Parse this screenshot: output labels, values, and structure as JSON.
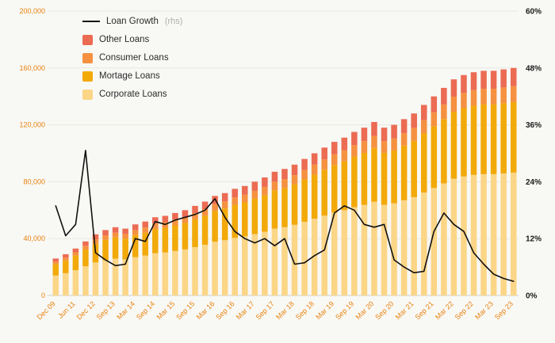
{
  "chart_data": {
    "type": "bar",
    "subtype": "stacked-bars-with-line-overlay",
    "title": "",
    "background": "#f8f8f5",
    "grid": true,
    "categories": [
      "Dec 09",
      "",
      "Jun 11",
      "",
      "Dec 12",
      "",
      "Sep 13",
      "",
      "Mar 14",
      "",
      "Sep 14",
      "",
      "Mar 15",
      "",
      "Sep 15",
      "",
      "Mar 16",
      "",
      "Sep 16",
      "",
      "Mar 17",
      "",
      "Sep 17",
      "",
      "Mar 18",
      "",
      "Sep 18",
      "",
      "Mar 19",
      "",
      "Sep 19",
      "",
      "Mar 20",
      "",
      "Sep 20",
      "",
      "Mar 21",
      "",
      "Sep 21",
      "",
      "Mar 22",
      "",
      "Sep 22",
      "",
      "Mar 23",
      "",
      "Sep 23"
    ],
    "series": [
      {
        "name": "Corporate Loans",
        "color": "#fbd687",
        "values": [
          14040,
          15660,
          17820,
          20520,
          23220,
          24840,
          25920,
          25380,
          27000,
          28080,
          29700,
          30240,
          31320,
          32400,
          34020,
          35640,
          37800,
          38880,
          40500,
          41580,
          43200,
          44820,
          46980,
          48060,
          49680,
          51840,
          54000,
          56160,
          58320,
          59940,
          62100,
          63720,
          65880,
          63720,
          64800,
          66960,
          69120,
          72360,
          75600,
          78840,
          82080,
          83700,
          84780,
          85320,
          85320,
          85860,
          86400
        ]
      },
      {
        "name": "Mortage Loans",
        "color": "#f2a90a",
        "values": [
          8060,
          8990,
          10230,
          11780,
          13330,
          14260,
          14880,
          14570,
          15500,
          16120,
          17050,
          17360,
          17980,
          18600,
          19530,
          20460,
          21700,
          22320,
          23250,
          23870,
          24800,
          25730,
          26970,
          27590,
          28520,
          29760,
          31000,
          32240,
          33480,
          34410,
          35650,
          36580,
          37820,
          36580,
          37200,
          38440,
          39680,
          41540,
          43400,
          45260,
          47120,
          48050,
          48670,
          48980,
          48980,
          49290,
          49600
        ]
      },
      {
        "name": "Consumer Loans",
        "color": "#f59140",
        "values": [
          1820,
          2030,
          2310,
          2660,
          3010,
          3220,
          3360,
          3290,
          3500,
          3640,
          3850,
          3920,
          4060,
          4200,
          4410,
          4620,
          4900,
          5040,
          5250,
          5390,
          5600,
          5810,
          6090,
          6230,
          6440,
          6720,
          7000,
          7280,
          7560,
          7770,
          8050,
          8260,
          8540,
          8260,
          8400,
          8680,
          8960,
          9380,
          9800,
          10220,
          10640,
          10850,
          10990,
          11060,
          11060,
          11130,
          11200
        ]
      },
      {
        "name": "Other Loans",
        "color": "#ec6b53",
        "values": [
          2080,
          2320,
          2640,
          3040,
          3440,
          3680,
          3840,
          3760,
          4000,
          4160,
          4400,
          4480,
          4640,
          4800,
          5040,
          5280,
          5600,
          5760,
          6000,
          6160,
          6400,
          6640,
          6960,
          7120,
          7360,
          7680,
          8000,
          8320,
          8640,
          8880,
          9200,
          9440,
          9760,
          9440,
          9600,
          9920,
          10240,
          10720,
          11200,
          11680,
          12160,
          12400,
          12560,
          12640,
          12640,
          12720,
          12800
        ]
      }
    ],
    "line_series": {
      "name": "Loan Growth",
      "suffix": "(rhs)",
      "axis": "right",
      "color": "#111111",
      "values": [
        18.9,
        12.6,
        15.0,
        30.6,
        9.0,
        7.5,
        6.3,
        6.6,
        12.0,
        11.4,
        15.6,
        15.0,
        15.9,
        16.5,
        17.1,
        18.0,
        20.4,
        16.5,
        13.5,
        12.0,
        11.1,
        12.0,
        10.5,
        12.0,
        6.6,
        6.9,
        8.4,
        9.6,
        17.4,
        18.9,
        18.0,
        15.0,
        14.4,
        15.0,
        7.5,
        6.0,
        4.8,
        5.1,
        13.5,
        17.4,
        15.0,
        13.5,
        9.0,
        6.6,
        4.5,
        3.6,
        3.0
      ]
    },
    "left_axis": {
      "min": 0,
      "max": 200000,
      "ticks": [
        "0",
        "40,000",
        "80,000",
        "120,000",
        "160,000",
        "200,000"
      ],
      "color": "#e8820c"
    },
    "right_axis": {
      "min": 0,
      "max": 60,
      "ticks": [
        "0%",
        "12%",
        "24%",
        "36%",
        "48%",
        "60%"
      ],
      "color": "#1a1a1a"
    },
    "legend": {
      "position": "top-left",
      "items": [
        {
          "label": "Loan Growth",
          "suffix": "(rhs)",
          "type": "line",
          "color": "#111111"
        },
        {
          "label": "Other Loans",
          "type": "swatch",
          "color": "#ec6b53"
        },
        {
          "label": "Consumer Loans",
          "type": "swatch",
          "color": "#f59140"
        },
        {
          "label": "Mortage Loans",
          "type": "swatch",
          "color": "#f2a90a"
        },
        {
          "label": "Corporate Loans",
          "type": "swatch",
          "color": "#fbd687"
        }
      ]
    }
  }
}
